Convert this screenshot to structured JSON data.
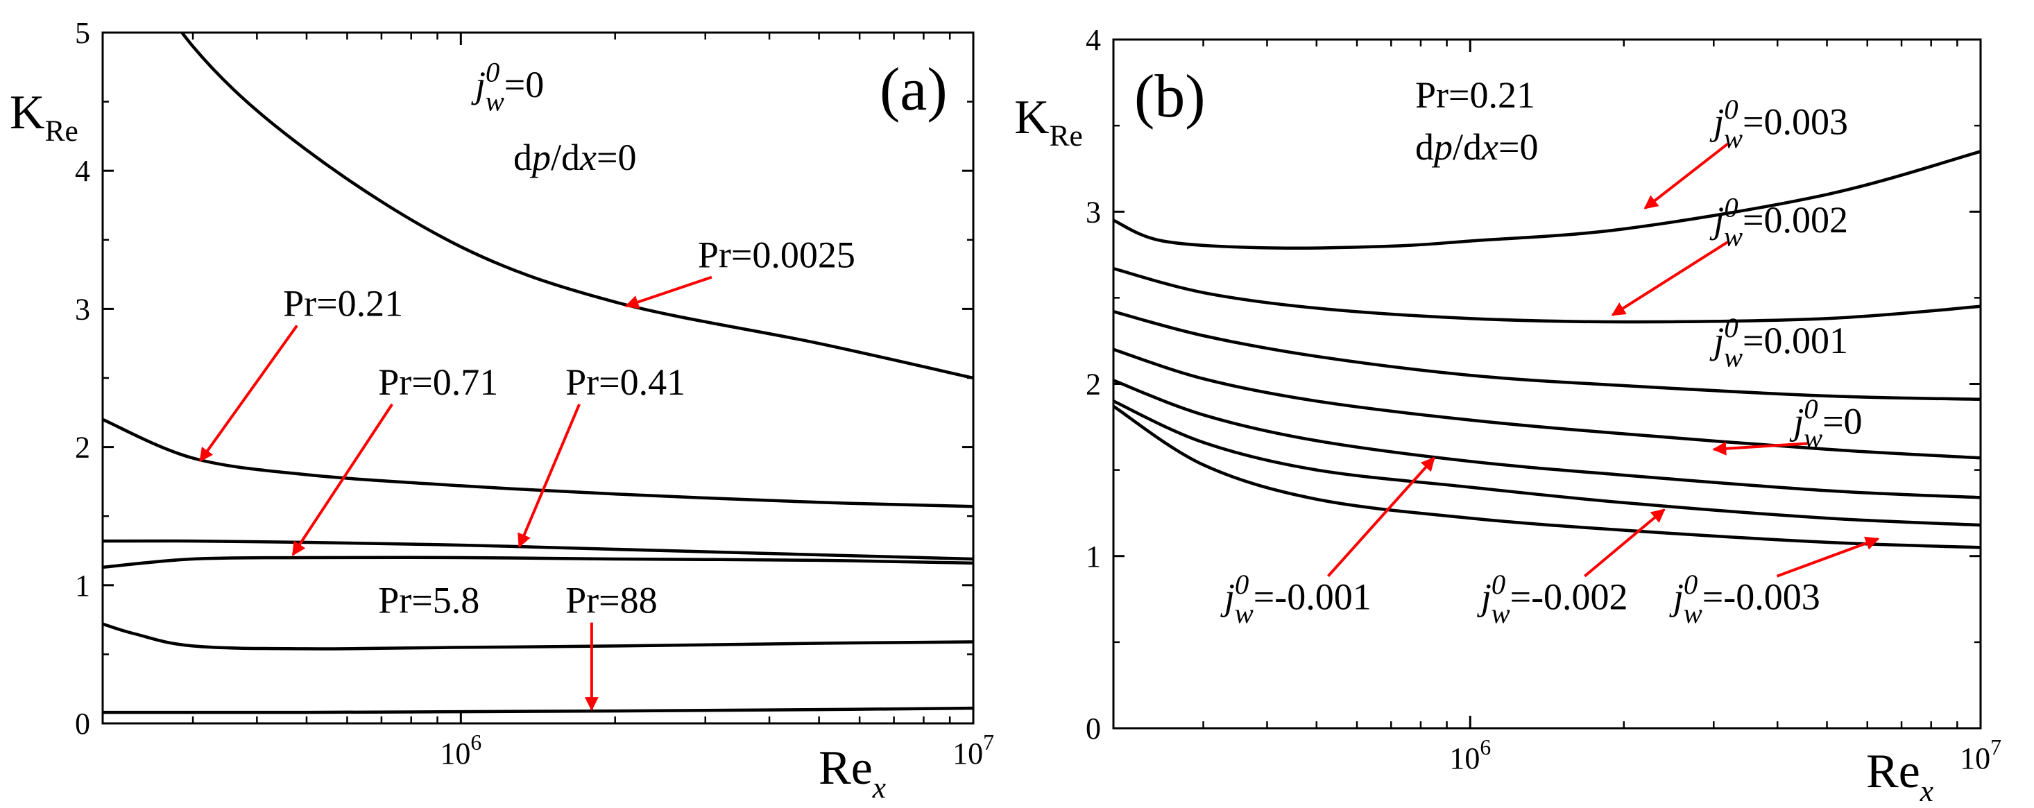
{
  "colors": {
    "curve": "#000000",
    "arrow": "#ff0000",
    "background": "#ffffff"
  },
  "chart_data": [
    {
      "panel": "(a)",
      "type": "line",
      "xscale": "log",
      "xlim": [
        200000,
        10000000
      ],
      "ylim": [
        0,
        5
      ],
      "grid": false,
      "xticks": [
        {
          "value": 1000000,
          "base": "10",
          "exp": "6"
        },
        {
          "value": 10000000,
          "base": "10",
          "exp": "7"
        }
      ],
      "yticks": [
        "0",
        "1",
        "2",
        "3",
        "4",
        "5"
      ],
      "xlabel": {
        "main": "Re",
        "sub": "x"
      },
      "ylabel": {
        "main": "K",
        "sub": "Re"
      },
      "annotations": [
        {
          "j": "j",
          "jsup": "0",
          "jsub": "w",
          "rest": "=0"
        },
        {
          "text": "dp/dx=0",
          "d1": "d",
          "p": "p",
          "mid": "/d",
          "x": "x",
          "end": "=0"
        }
      ],
      "series": [
        {
          "name": "Pr=0.0025",
          "x": [
            200000,
            300000,
            500000,
            1000000,
            2000000,
            5000000,
            10000000
          ],
          "y": [
            5.9,
            4.9,
            4.15,
            3.45,
            3.05,
            2.75,
            2.5
          ]
        },
        {
          "name": "Pr=0.21",
          "x": [
            200000,
            300000,
            500000,
            1000000,
            2000000,
            5000000,
            10000000
          ],
          "y": [
            2.2,
            1.92,
            1.8,
            1.72,
            1.66,
            1.6,
            1.57
          ]
        },
        {
          "name": "Pr=0.71",
          "x": [
            200000,
            300000,
            500000,
            1000000,
            2000000,
            5000000,
            10000000
          ],
          "y": [
            1.32,
            1.32,
            1.31,
            1.29,
            1.26,
            1.22,
            1.19
          ]
        },
        {
          "name": "Pr=0.41",
          "x": [
            200000,
            300000,
            500000,
            1000000,
            2000000,
            5000000,
            10000000
          ],
          "y": [
            1.13,
            1.19,
            1.2,
            1.2,
            1.19,
            1.18,
            1.16
          ]
        },
        {
          "name": "Pr=5.8",
          "x": [
            200000,
            230000,
            300000,
            500000,
            1000000,
            2000000,
            5000000,
            10000000
          ],
          "y": [
            0.72,
            0.65,
            0.56,
            0.54,
            0.55,
            0.56,
            0.58,
            0.59
          ]
        },
        {
          "name": "Pr=88",
          "x": [
            200000,
            500000,
            1000000,
            2000000,
            5000000,
            10000000
          ],
          "y": [
            0.08,
            0.08,
            0.085,
            0.09,
            0.1,
            0.11
          ]
        }
      ],
      "labels": [
        {
          "text": "Pr=0.0025",
          "lx": 2900000,
          "ly": 3.3,
          "tx": 2100000,
          "ty": 3.02
        },
        {
          "text": "Pr=0.21",
          "lx": 450000,
          "ly": 2.95,
          "tx": 310000,
          "ty": 1.9
        },
        {
          "text": "Pr=0.71",
          "lx": 690000,
          "ly": 2.38,
          "tx": 470000,
          "ty": 1.22
        },
        {
          "text": "Pr=0.41",
          "lx": 1600000,
          "ly": 2.38,
          "tx": 1300000,
          "ty": 1.28
        },
        {
          "text": "Pr=5.8",
          "lx": 690000,
          "ly": 0.8,
          "tx": null,
          "ty": null
        },
        {
          "text": "Pr=88",
          "lx": 1600000,
          "ly": 0.8,
          "tx": 1800000,
          "ty": 0.1
        }
      ]
    },
    {
      "panel": "(b)",
      "type": "line",
      "xscale": "log",
      "xlim": [
        200000,
        10000000
      ],
      "ylim": [
        0,
        4
      ],
      "grid": false,
      "xticks": [
        {
          "value": 1000000,
          "base": "10",
          "exp": "6"
        },
        {
          "value": 10000000,
          "base": "10",
          "exp": "7"
        }
      ],
      "yticks": [
        "0",
        "1",
        "2",
        "3",
        "4"
      ],
      "xlabel": {
        "main": "Re",
        "sub": "x"
      },
      "ylabel": {
        "main": "K",
        "sub": "Re"
      },
      "annotations": [
        {
          "text": "Pr=0.21"
        },
        {
          "text": "dp/dx=0",
          "d1": "d",
          "p": "p",
          "mid": "/d",
          "x": "x",
          "end": "=0"
        }
      ],
      "series": [
        {
          "name": "=0.003",
          "x": [
            200000,
            250000,
            400000,
            700000,
            1000000,
            2000000,
            5000000,
            10000000
          ],
          "y": [
            2.95,
            2.83,
            2.79,
            2.8,
            2.83,
            2.9,
            3.1,
            3.35
          ]
        },
        {
          "name": "=0.002",
          "x": [
            200000,
            300000,
            500000,
            1000000,
            2000000,
            5000000,
            10000000
          ],
          "y": [
            2.67,
            2.53,
            2.44,
            2.38,
            2.36,
            2.38,
            2.45
          ]
        },
        {
          "name": "=0.001",
          "x": [
            200000,
            300000,
            500000,
            1000000,
            2000000,
            5000000,
            10000000
          ],
          "y": [
            2.42,
            2.28,
            2.16,
            2.05,
            1.99,
            1.93,
            1.91
          ]
        },
        {
          "name": "=0",
          "x": [
            200000,
            300000,
            500000,
            1000000,
            2000000,
            5000000,
            10000000
          ],
          "y": [
            2.2,
            2.03,
            1.9,
            1.79,
            1.71,
            1.62,
            1.57
          ]
        },
        {
          "name": "=-0.001",
          "x": [
            200000,
            300000,
            500000,
            1000000,
            2000000,
            5000000,
            10000000
          ],
          "y": [
            2.02,
            1.82,
            1.67,
            1.55,
            1.47,
            1.38,
            1.34
          ]
        },
        {
          "name": "=-0.002",
          "x": [
            200000,
            300000,
            500000,
            1000000,
            2000000,
            5000000,
            10000000
          ],
          "y": [
            1.9,
            1.66,
            1.5,
            1.4,
            1.31,
            1.22,
            1.18
          ]
        },
        {
          "name": "=-0.003",
          "x": [
            200000,
            300000,
            500000,
            1000000,
            2000000,
            5000000,
            10000000
          ],
          "y": [
            1.87,
            1.53,
            1.33,
            1.22,
            1.15,
            1.08,
            1.05
          ]
        }
      ],
      "labels": [
        {
          "j": "j",
          "jsup": "0",
          "jsub": "w",
          "rest": "=0.003",
          "lx": 3000000,
          "ly": 3.45,
          "tx": 2200000,
          "ty": 3.02
        },
        {
          "j": "j",
          "jsup": "0",
          "jsub": "w",
          "rest": "=0.002",
          "lx": 3000000,
          "ly": 2.88,
          "tx": 1900000,
          "ty": 2.4
        },
        {
          "j": "j",
          "jsup": "0",
          "jsub": "w",
          "rest": "=0.001",
          "lx": 3000000,
          "ly": 2.18,
          "tx": null,
          "ty": null
        },
        {
          "j": "j",
          "jsup": "0",
          "jsub": "w",
          "rest": "=0",
          "lx": 4300000,
          "ly": 1.71,
          "tx": 3000000,
          "ty": 1.62
        },
        {
          "j": "j",
          "jsup": "0",
          "jsub": "w",
          "rest": "=-0.001",
          "lx": 330000,
          "ly": 0.69,
          "tx": 850000,
          "ty": 1.57
        },
        {
          "j": "j",
          "jsup": "0",
          "jsub": "w",
          "rest": "=-0.002",
          "lx": 1050000,
          "ly": 0.69,
          "tx": 2400000,
          "ty": 1.27
        },
        {
          "j": "j",
          "jsup": "0",
          "jsub": "w",
          "rest": "=-0.003",
          "lx": 2500000,
          "ly": 0.69,
          "tx": 6300000,
          "ty": 1.1
        }
      ]
    }
  ]
}
